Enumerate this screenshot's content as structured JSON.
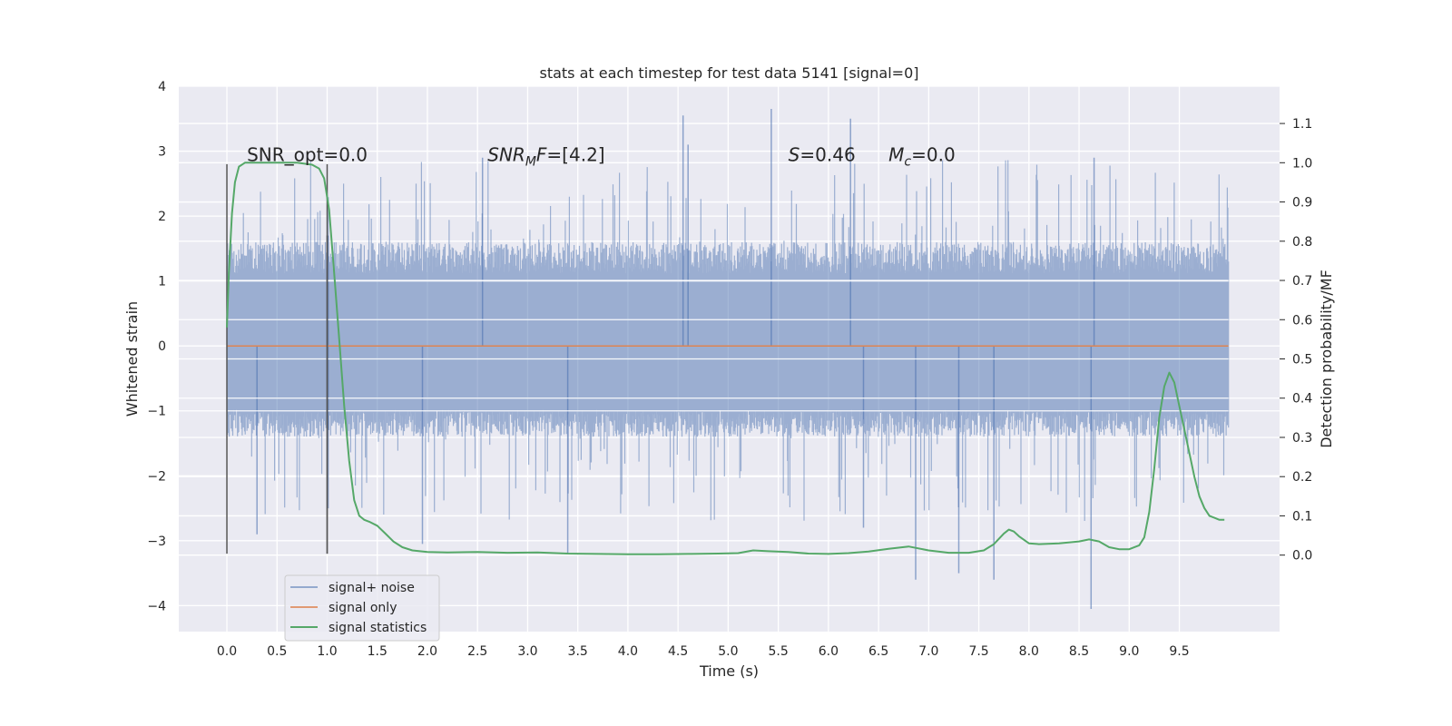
{
  "chart_data": {
    "type": "line",
    "title": "stats at each timestep for test data 5141 [signal=0]",
    "xlabel": "Time (s)",
    "ylabel": "Whitened strain",
    "y2label": "Detection probability/MF",
    "xlim": [
      -0.48,
      10.5
    ],
    "ylim": [
      -4.4,
      4.0
    ],
    "y2lim": [
      -0.195,
      1.195
    ],
    "x_ticks": [
      "0.0",
      "0.5",
      "1.0",
      "1.5",
      "2.0",
      "2.5",
      "3.0",
      "3.5",
      "4.0",
      "4.5",
      "5.0",
      "5.5",
      "6.0",
      "6.5",
      "7.0",
      "7.5",
      "8.0",
      "8.5",
      "9.0",
      "9.5"
    ],
    "y_ticks": [
      "4",
      "3",
      "2",
      "1",
      "0",
      "−1",
      "−2",
      "−3",
      "−4"
    ],
    "y2_ticks": [
      "1.1",
      "1.0",
      "0.9",
      "0.8",
      "0.7",
      "0.6",
      "0.5",
      "0.4",
      "0.3",
      "0.2",
      "0.1",
      "0.0"
    ],
    "grid": true,
    "legend_position": "lower-left",
    "colors": {
      "noise": "#4c72b0",
      "signal": "#dd8452",
      "stats": "#55a868",
      "vlines": "#555555",
      "plot_bg": "#eaeaf2"
    },
    "series": [
      {
        "name": "signal+ noise",
        "axis": "left",
        "x_range": [
          0.0,
          9.99
        ],
        "envelope_typical": [
          -1.4,
          1.6
        ],
        "envelope_peaks": [
          -3.6,
          3.6
        ],
        "spikes": [
          {
            "x": 1.01,
            "y": 1.7
          },
          {
            "x": 1.01,
            "y": -2.5
          },
          {
            "x": 0.3,
            "y": -2.9
          },
          {
            "x": 1.95,
            "y": -3.05
          },
          {
            "x": 2.55,
            "y": 2.9
          },
          {
            "x": 3.4,
            "y": -3.2
          },
          {
            "x": 4.55,
            "y": 3.55
          },
          {
            "x": 4.6,
            "y": 3.1
          },
          {
            "x": 5.43,
            "y": 3.65
          },
          {
            "x": 6.22,
            "y": 3.5
          },
          {
            "x": 6.35,
            "y": -2.8
          },
          {
            "x": 6.87,
            "y": -3.6
          },
          {
            "x": 7.3,
            "y": -3.5
          },
          {
            "x": 7.65,
            "y": -3.6
          },
          {
            "x": 8.62,
            "y": -4.05
          },
          {
            "x": 8.65,
            "y": 2.9
          }
        ]
      },
      {
        "name": "signal only",
        "axis": "left",
        "x": [
          0.0,
          9.99
        ],
        "y": [
          0.0,
          0.0
        ]
      },
      {
        "name": "signal statistics",
        "axis": "right",
        "x": [
          0.0,
          0.02,
          0.05,
          0.08,
          0.12,
          0.18,
          0.25,
          0.35,
          0.5,
          0.7,
          0.85,
          0.92,
          0.97,
          1.02,
          1.07,
          1.12,
          1.17,
          1.22,
          1.27,
          1.32,
          1.37,
          1.42,
          1.5,
          1.58,
          1.66,
          1.75,
          1.85,
          2.0,
          2.2,
          2.5,
          2.8,
          3.1,
          3.4,
          3.7,
          4.0,
          4.3,
          4.6,
          4.9,
          5.1,
          5.25,
          5.4,
          5.6,
          5.8,
          6.0,
          6.2,
          6.4,
          6.6,
          6.8,
          7.0,
          7.2,
          7.4,
          7.55,
          7.65,
          7.75,
          7.8,
          7.85,
          7.9,
          8.0,
          8.1,
          8.3,
          8.5,
          8.6,
          8.7,
          8.8,
          8.9,
          9.0,
          9.1,
          9.15,
          9.2,
          9.25,
          9.3,
          9.35,
          9.4,
          9.45,
          9.5,
          9.55,
          9.6,
          9.65,
          9.7,
          9.75,
          9.8,
          9.85,
          9.9,
          9.95
        ],
        "y": [
          0.58,
          0.72,
          0.87,
          0.95,
          0.99,
          1.0,
          1.0,
          1.0,
          1.0,
          1.0,
          0.995,
          0.985,
          0.96,
          0.88,
          0.72,
          0.55,
          0.38,
          0.24,
          0.14,
          0.1,
          0.09,
          0.085,
          0.075,
          0.055,
          0.035,
          0.02,
          0.012,
          0.008,
          0.007,
          0.008,
          0.006,
          0.007,
          0.004,
          0.003,
          0.002,
          0.002,
          0.003,
          0.004,
          0.005,
          0.012,
          0.01,
          0.008,
          0.004,
          0.003,
          0.005,
          0.009,
          0.016,
          0.022,
          0.012,
          0.006,
          0.006,
          0.012,
          0.028,
          0.055,
          0.065,
          0.06,
          0.048,
          0.03,
          0.028,
          0.03,
          0.035,
          0.04,
          0.035,
          0.02,
          0.015,
          0.015,
          0.025,
          0.045,
          0.11,
          0.22,
          0.35,
          0.43,
          0.465,
          0.44,
          0.38,
          0.32,
          0.26,
          0.2,
          0.15,
          0.12,
          0.1,
          0.095,
          0.09,
          0.09
        ]
      }
    ],
    "vlines": [
      {
        "x": 0.0
      },
      {
        "x": 1.0
      }
    ],
    "annotations": [
      {
        "text": "SNR_opt=0.0",
        "x": 0.2,
        "y": 2.85
      },
      {
        "text": "SNR",
        "sub": "M",
        "tail": "F=[4.2]",
        "italic": true,
        "x": 2.6,
        "y": 2.85
      },
      {
        "text": "S",
        "tail": "=0.46",
        "italic": true,
        "x": 5.6,
        "y": 2.85
      },
      {
        "text": "M",
        "sub": "c",
        "tail": "=0.0",
        "italic": true,
        "x": 6.6,
        "y": 2.85
      }
    ],
    "legend": [
      "signal+ noise",
      "signal only",
      "signal statistics"
    ]
  }
}
